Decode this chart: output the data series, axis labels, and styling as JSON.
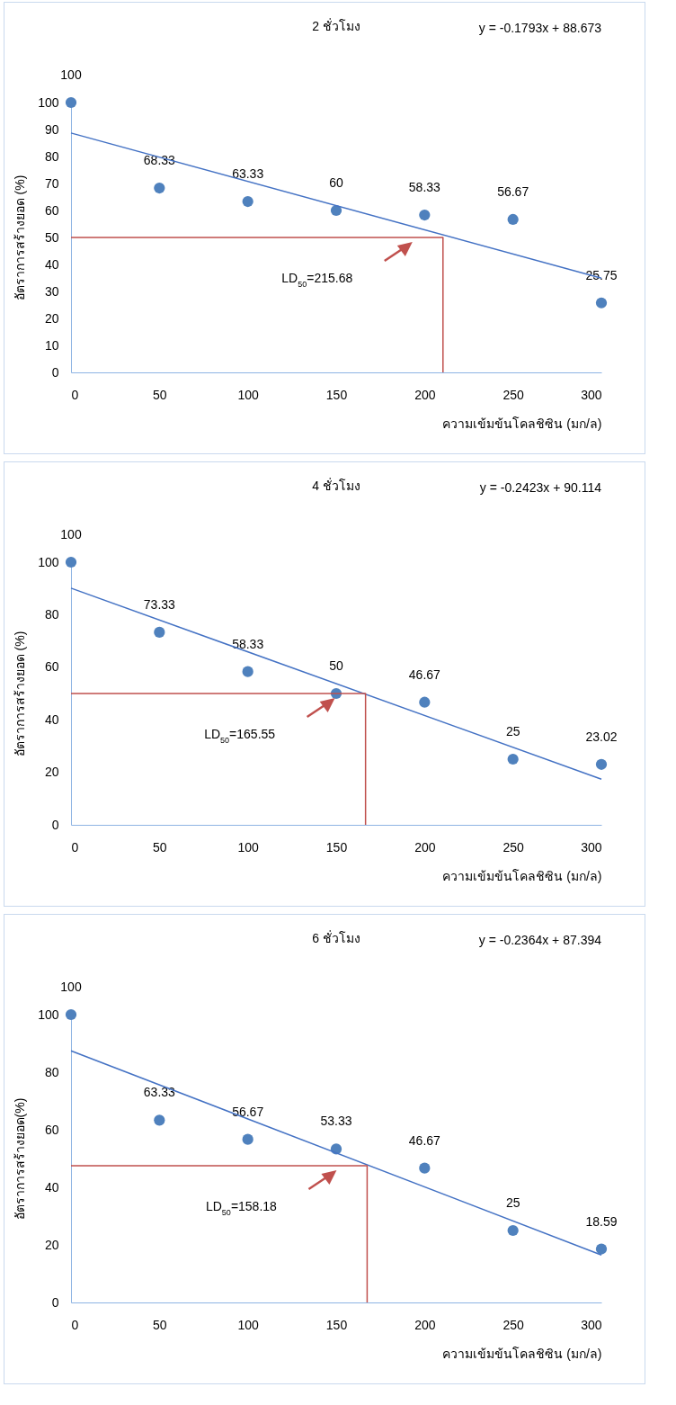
{
  "chart_data": [
    {
      "type": "scatter",
      "title": "2 ชั่วโมง",
      "xlabel": "ความเข้มข้นโคลชิซิน (มก/ล)",
      "ylabel": "อัตราการสร้างยอด (%)",
      "annotations": [
        "y = -0.1793x + 88.673",
        "LD$_{50}$=215.68"
      ],
      "xlim": [
        0,
        300
      ],
      "ylim": [
        0,
        100
      ],
      "xticks": [
        0,
        50,
        100,
        150,
        200,
        250,
        300
      ],
      "yticks": [
        0,
        10,
        20,
        30,
        40,
        50,
        60,
        70,
        80,
        90,
        100
      ],
      "series": [
        {
          "type": "scatter",
          "marker": "circle",
          "color": "#4f81bd",
          "x": [
            0,
            50,
            100,
            150,
            200,
            250,
            300
          ],
          "values": [
            100,
            68.33,
            63.33,
            60,
            58.33,
            56.67,
            25.75
          ],
          "value_labels": [
            "100",
            "68.33",
            "63.33",
            "60",
            "58.33",
            "56.67",
            "25.75"
          ]
        },
        {
          "type": "line",
          "marker": "none",
          "color": "#4472c4",
          "x": [
            0,
            300
          ],
          "values": [
            88.7,
            34.9
          ]
        },
        {
          "type": "line",
          "marker": "none",
          "color": "#c0504d",
          "x": [
            0,
            210.4,
            210.4
          ],
          "values": [
            50,
            50,
            0
          ]
        }
      ]
    },
    {
      "type": "scatter",
      "title": "4 ชั่วโมง",
      "xlabel": "ความเข้มข้นโคลชิซิน (มก/ล)",
      "ylabel": "อัตราการสร้างยอด (%)",
      "annotations": [
        "y = -0.2423x + 90.114",
        "LD$_{50}$=165.55"
      ],
      "xlim": [
        0,
        300
      ],
      "ylim": [
        0,
        100
      ],
      "xticks": [
        0,
        50,
        100,
        150,
        200,
        250,
        300
      ],
      "yticks": [
        0,
        20,
        40,
        60,
        80,
        100
      ],
      "series": [
        {
          "type": "scatter",
          "marker": "circle",
          "color": "#4f81bd",
          "x": [
            0,
            50,
            100,
            150,
            200,
            250,
            300
          ],
          "values": [
            100,
            73.33,
            58.33,
            50,
            46.67,
            25,
            23.02
          ],
          "value_labels": [
            "100",
            "73.33",
            "58.33",
            "50",
            "46.67",
            "25",
            "23.02"
          ]
        },
        {
          "type": "line",
          "marker": "none",
          "color": "#4472c4",
          "x": [
            0,
            300
          ],
          "values": [
            90.1,
            17.4
          ]
        },
        {
          "type": "line",
          "marker": "none",
          "color": "#c0504d",
          "x": [
            0,
            166.6,
            166.6
          ],
          "values": [
            50,
            50,
            0
          ]
        }
      ]
    },
    {
      "type": "scatter",
      "title": "6 ชั่วโมง",
      "xlabel": "ความเข้มข้นโคลชิซิน (มก/ล)",
      "ylabel": "อัตราการสร้างยอด(%)",
      "annotations": [
        "y = -0.2364x + 87.394",
        "LD$_{50}$=158.18"
      ],
      "xlim": [
        0,
        300
      ],
      "ylim": [
        0,
        100
      ],
      "xticks": [
        0,
        50,
        100,
        150,
        200,
        250,
        300
      ],
      "yticks": [
        0,
        20,
        40,
        60,
        80,
        100
      ],
      "series": [
        {
          "type": "scatter",
          "marker": "circle",
          "color": "#4f81bd",
          "x": [
            0,
            50,
            100,
            150,
            200,
            250,
            300
          ],
          "values": [
            100,
            63.33,
            56.67,
            53.33,
            46.67,
            25,
            18.59
          ],
          "value_labels": [
            "100",
            "63.33",
            "56.67",
            "53.33",
            "46.67",
            "25",
            "18.59"
          ]
        },
        {
          "type": "line",
          "marker": "none",
          "color": "#4472c4",
          "x": [
            0,
            300
          ],
          "values": [
            87.4,
            16.5
          ]
        },
        {
          "type": "line",
          "marker": "none",
          "color": "#c0504d",
          "x": [
            0,
            167.5,
            167.5
          ],
          "values": [
            47.5,
            47.5,
            0
          ]
        }
      ]
    }
  ]
}
